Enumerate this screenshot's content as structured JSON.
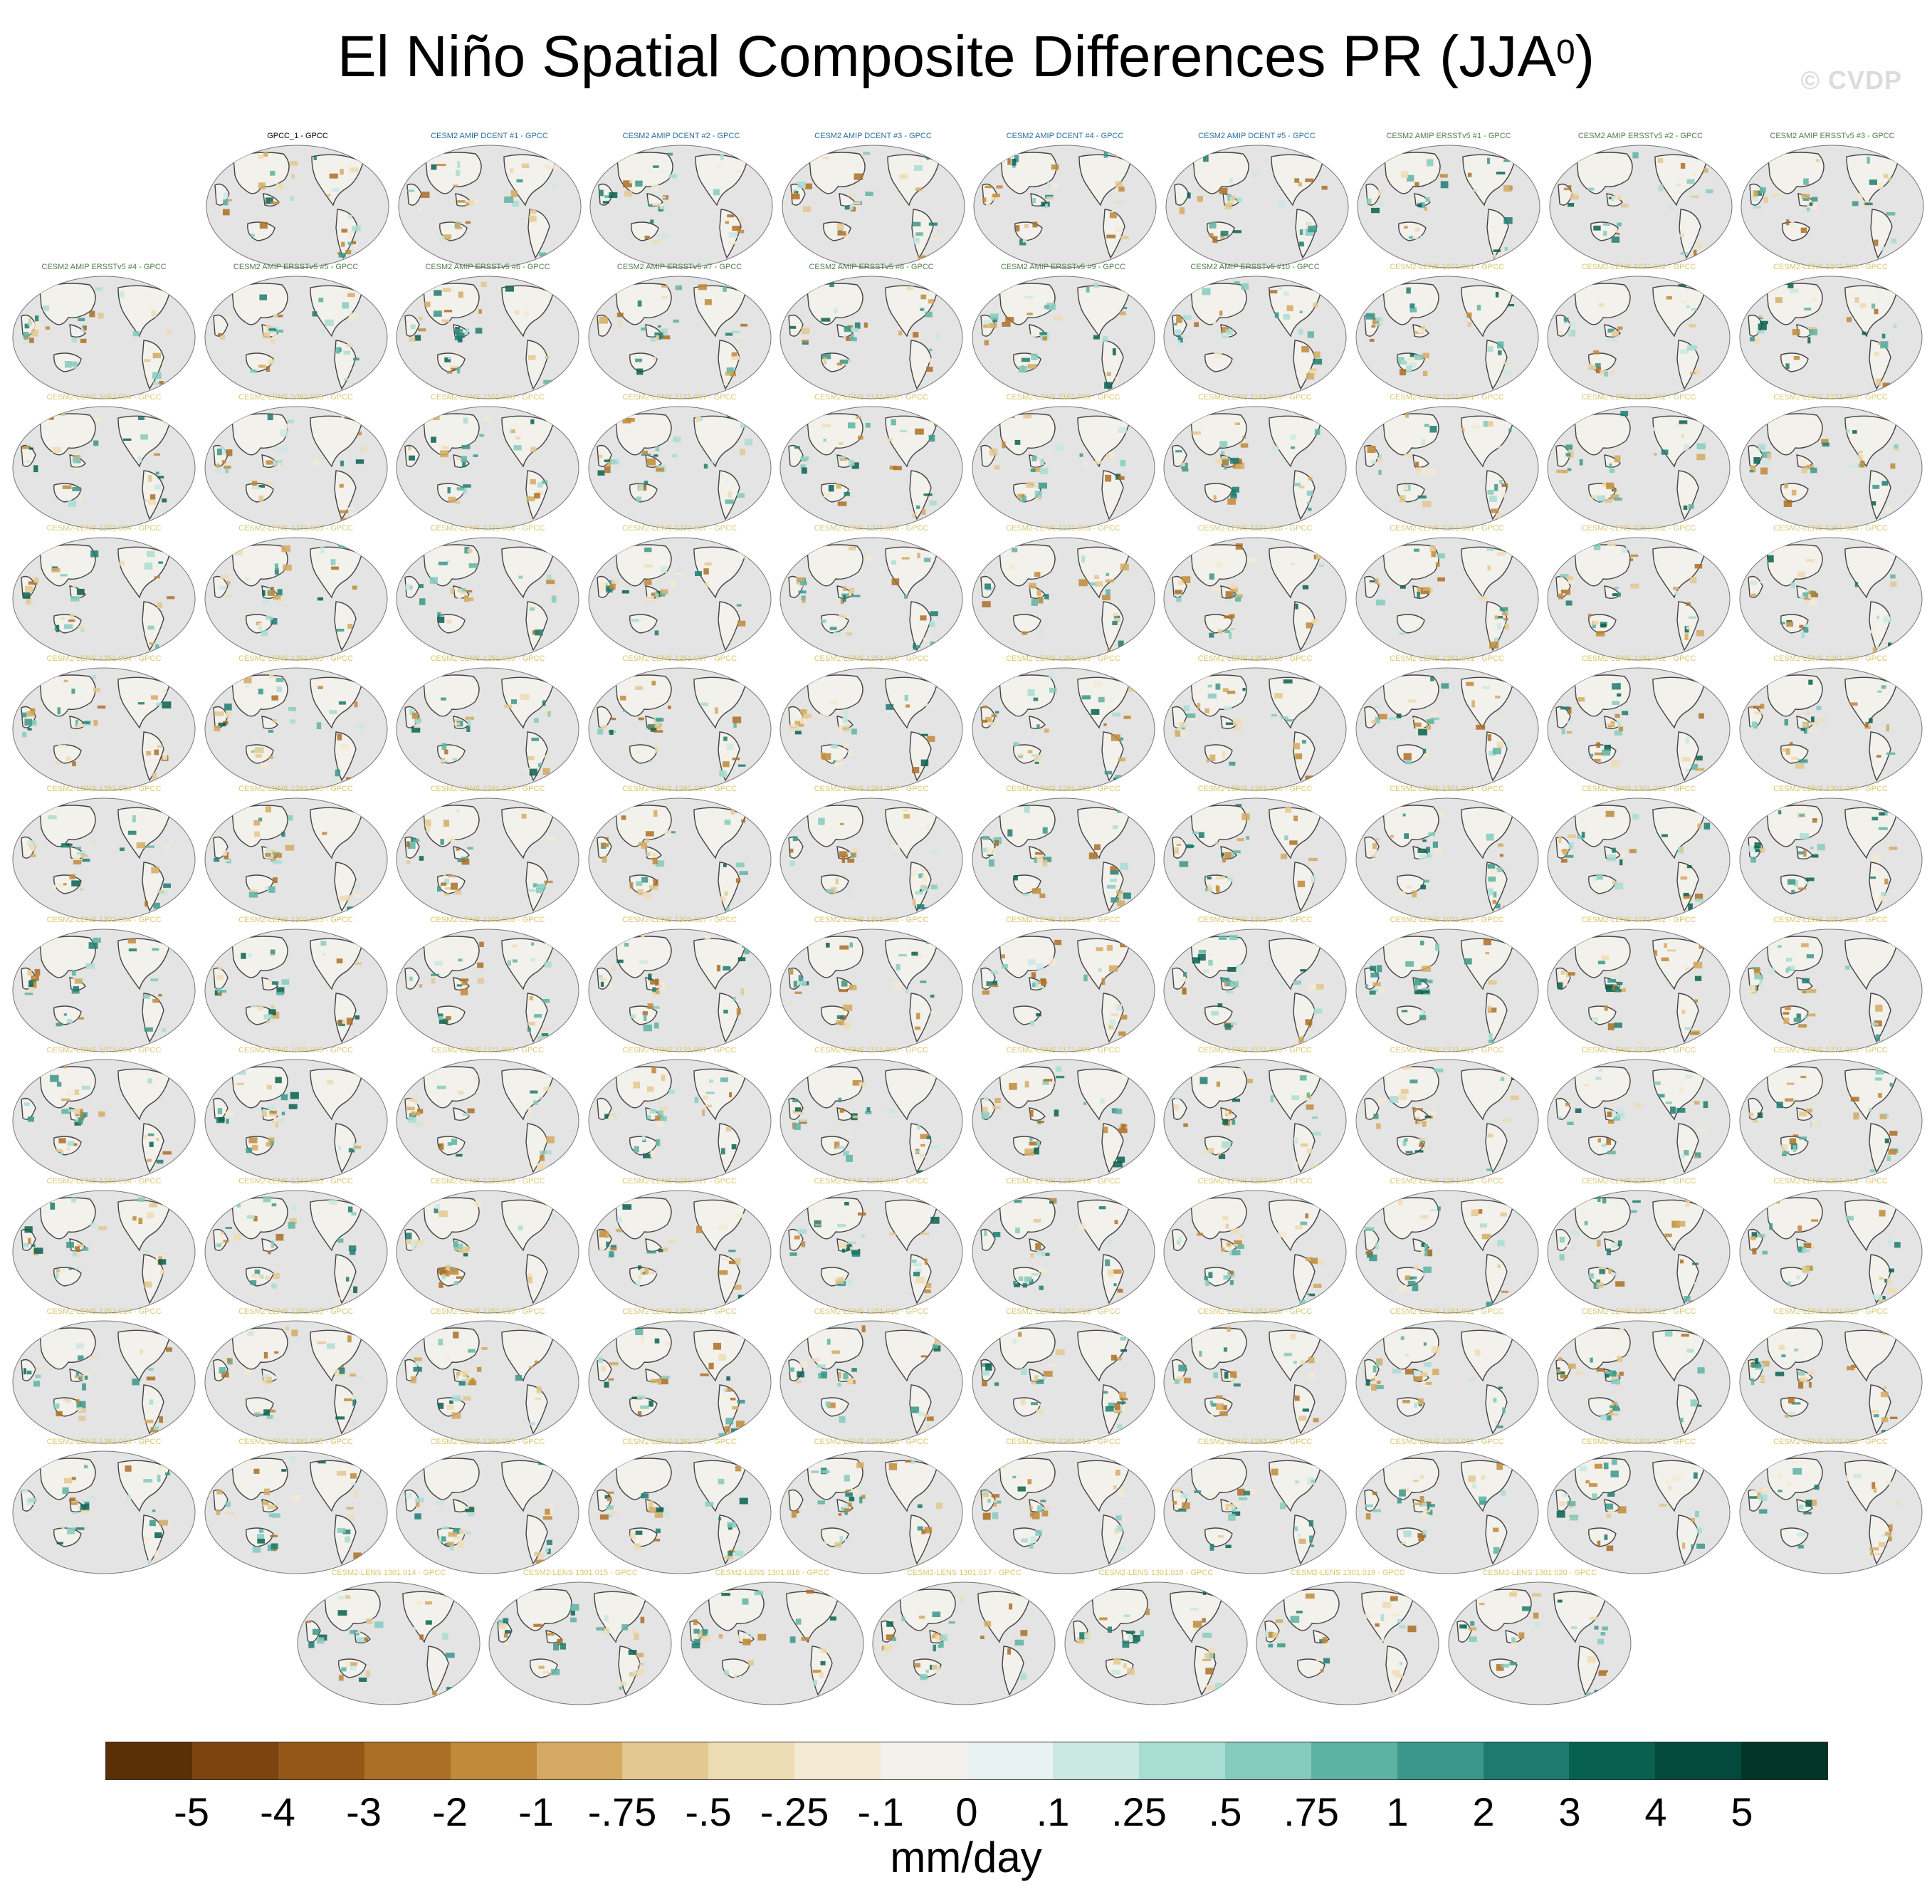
{
  "title": "El Niño Spatial Composite Differences PR (JJA",
  "title_sup": "0",
  "title_close": ")",
  "watermark": "© CVDP",
  "colors": {
    "ocean": "#e4e4e4",
    "coast": "#444444",
    "title_obs": "#000000",
    "title_dcent": "#2a6f9e",
    "title_ersst": "#4f7f4a",
    "title_lens": "#d9c86e"
  },
  "panel_rows": [
    [
      "GPCC_1 - GPCC",
      "CESM2 AMIP DCENT #1 - GPCC",
      "CESM2 AMIP DCENT #2 - GPCC",
      "CESM2 AMIP DCENT #3 - GPCC",
      "CESM2 AMIP DCENT #4 - GPCC",
      "CESM2 AMIP DCENT #5 - GPCC",
      "CESM2 AMIP ERSSTv5 #1 - GPCC",
      "CESM2 AMIP ERSSTv5 #2 - GPCC",
      "CESM2 AMIP ERSSTv5 #3 - GPCC"
    ],
    [
      "CESM2 AMIP ERSSTv5 #4 - GPCC",
      "CESM2 AMIP ERSSTv5 #5 - GPCC",
      "CESM2 AMIP ERSSTv5 #6 - GPCC",
      "CESM2 AMIP ERSSTv5 #7 - GPCC",
      "CESM2 AMIP ERSSTv5 #8 - GPCC",
      "CESM2 AMIP ERSSTv5 #9 - GPCC",
      "CESM2 AMIP ERSSTv5 #10 - GPCC",
      "CESM2-LENS 1001.001 - GPCC",
      "CESM2-LENS 1021.002 - GPCC",
      "CESM2-LENS 1041.003 - GPCC"
    ],
    [
      "CESM2-LENS 1061.004 - GPCC",
      "CESM2-LENS 1081.005 - GPCC",
      "CESM2-LENS 1101.006 - GPCC",
      "CESM2-LENS 1121.007 - GPCC",
      "CESM2-LENS 1141.008 - GPCC",
      "CESM2-LENS 1161.009 - GPCC",
      "CESM2-LENS 1181.010 - GPCC",
      "CESM2-LENS 1231.001 - GPCC",
      "CESM2-LENS 1231.002 - GPCC",
      "CESM2-LENS 1231.003 - GPCC"
    ],
    [
      "CESM2-LENS 1231.004 - GPCC",
      "CESM2-LENS 1231.005 - GPCC",
      "CESM2-LENS 1231.006 - GPCC",
      "CESM2-LENS 1231.007 - GPCC",
      "CESM2-LENS 1231.008 - GPCC",
      "CESM2-LENS 1231.009 - GPCC",
      "CESM2-LENS 1231.010 - GPCC",
      "CESM2-LENS 1251.001 - GPCC",
      "CESM2-LENS 1251.002 - GPCC",
      "CESM2-LENS 1251.003 - GPCC"
    ],
    [
      "CESM2-LENS 1251.004 - GPCC",
      "CESM2-LENS 1251.005 - GPCC",
      "CESM2-LENS 1251.006 - GPCC",
      "CESM2-LENS 1251.007 - GPCC",
      "CESM2-LENS 1251.008 - GPCC",
      "CESM2-LENS 1251.009 - GPCC",
      "CESM2-LENS 1251.010 - GPCC",
      "CESM2-LENS 1281.001 - GPCC",
      "CESM2-LENS 1281.002 - GPCC",
      "CESM2-LENS 1281.003 - GPCC"
    ],
    [
      "CESM2-LENS 1281.004 - GPCC",
      "CESM2-LENS 1281.005 - GPCC",
      "CESM2-LENS 1281.006 - GPCC",
      "CESM2-LENS 1281.007 - GPCC",
      "CESM2-LENS 1281.008 - GPCC",
      "CESM2-LENS 1281.009 - GPCC",
      "CESM2-LENS 1281.010 - GPCC",
      "CESM2-LENS 1301.001 - GPCC",
      "CESM2-LENS 1301.002 - GPCC",
      "CESM2-LENS 1301.003 - GPCC"
    ],
    [
      "CESM2-LENS 1301.004 - GPCC",
      "CESM2-LENS 1301.005 - GPCC",
      "CESM2-LENS 1301.006 - GPCC",
      "CESM2-LENS 1301.007 - GPCC",
      "CESM2-LENS 1301.008 - GPCC",
      "CESM2-LENS 1301.009 - GPCC",
      "CESM2-LENS 1301.010 - GPCC",
      "CESM2-LENS 1011.001 - GPCC",
      "CESM2-LENS 1031.002 - GPCC",
      "CESM2-LENS 1051.003 - GPCC"
    ],
    [
      "CESM2-LENS 1071.004 - GPCC",
      "CESM2-LENS 1091.005 - GPCC",
      "CESM2-LENS 1111.006 - GPCC",
      "CESM2-LENS 1131.007 - GPCC",
      "CESM2-LENS 1151.008 - GPCC",
      "CESM2-LENS 1171.009 - GPCC",
      "CESM2-LENS 1191.010 - GPCC",
      "CESM2-LENS 1231.011 - GPCC",
      "CESM2-LENS 1231.012 - GPCC",
      "CESM2-LENS 1231.013 - GPCC"
    ],
    [
      "CESM2-LENS 1231.014 - GPCC",
      "CESM2-LENS 1231.015 - GPCC",
      "CESM2-LENS 1231.016 - GPCC",
      "CESM2-LENS 1231.017 - GPCC",
      "CESM2-LENS 1231.018 - GPCC",
      "CESM2-LENS 1231.019 - GPCC",
      "CESM2-LENS 1231.020 - GPCC",
      "CESM2-LENS 1251.011 - GPCC",
      "CESM2-LENS 1251.012 - GPCC",
      "CESM2-LENS 1251.013 - GPCC"
    ],
    [
      "CESM2-LENS 1251.014 - GPCC",
      "CESM2-LENS 1251.015 - GPCC",
      "CESM2-LENS 1251.016 - GPCC",
      "CESM2-LENS 1251.017 - GPCC",
      "CESM2-LENS 1251.018 - GPCC",
      "CESM2-LENS 1251.019 - GPCC",
      "CESM2-LENS 1251.020 - GPCC",
      "CESM2-LENS 1281.011 - GPCC",
      "CESM2-LENS 1281.012 - GPCC",
      "CESM2-LENS 1281.013 - GPCC"
    ],
    [
      "CESM2-LENS 1281.014 - GPCC",
      "CESM2-LENS 1281.015 - GPCC",
      "CESM2-LENS 1281.016 - GPCC",
      "CESM2-LENS 1281.017 - GPCC",
      "CESM2-LENS 1281.018 - GPCC",
      "CESM2-LENS 1281.019 - GPCC",
      "CESM2-LENS 1281.020 - GPCC",
      "CESM2-LENS 1301.011 - GPCC",
      "CESM2-LENS 1301.012 - GPCC",
      "CESM2-LENS 1301.013 - GPCC"
    ],
    [
      "CESM2-LENS 1301.014 - GPCC",
      "CESM2-LENS 1301.015 - GPCC",
      "CESM2-LENS 1301.016 - GPCC",
      "CESM2-LENS 1301.017 - GPCC",
      "CESM2-LENS 1301.018 - GPCC",
      "CESM2-LENS 1301.019 - GPCC",
      "CESM2-LENS 1301.020 - GPCC"
    ]
  ],
  "colorbar": {
    "colors": [
      "#5a3006",
      "#7a4310",
      "#955717",
      "#ab6f25",
      "#c08a3a",
      "#d4aa62",
      "#e3c88f",
      "#eedcb4",
      "#f3ead4",
      "#f3f1ec",
      "#e8f2f0",
      "#cbe8e3",
      "#a8ddd4",
      "#84cbbe",
      "#5db3a3",
      "#3a978a",
      "#1d7b70",
      "#08604f",
      "#034a3c",
      "#023428"
    ],
    "ticks": [
      "-5",
      "-4",
      "-3",
      "-2",
      "-1",
      "-.75",
      "-.5",
      "-.25",
      "-.1",
      "0",
      ".1",
      ".25",
      ".5",
      ".75",
      "1",
      "2",
      "3",
      "4",
      "5"
    ],
    "units": "mm/day"
  }
}
